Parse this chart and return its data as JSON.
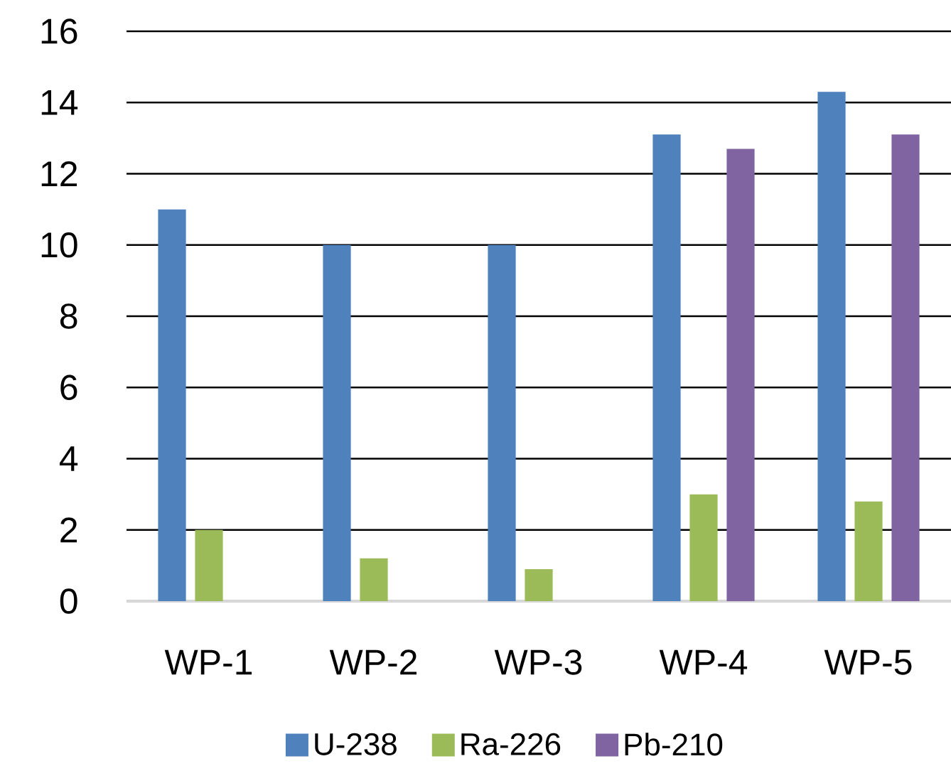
{
  "chart_data": {
    "type": "bar",
    "categories": [
      "WP-1",
      "WP-2",
      "WP-3",
      "WP-4",
      "WP-5"
    ],
    "series": [
      {
        "name": "U-238",
        "color": "#4f81bd",
        "values": [
          11.0,
          10.0,
          10.0,
          13.1,
          14.3
        ]
      },
      {
        "name": "Ra-226",
        "color": "#9bbb59",
        "values": [
          2.0,
          1.2,
          0.9,
          3.0,
          2.8
        ]
      },
      {
        "name": "Pb-210",
        "color": "#8064a2",
        "values": [
          null,
          null,
          null,
          12.7,
          13.1
        ]
      }
    ],
    "ylim": [
      0,
      16
    ],
    "yticks": [
      0,
      2,
      4,
      6,
      8,
      10,
      12,
      14,
      16
    ],
    "grid": "y",
    "legend": "bottom"
  }
}
